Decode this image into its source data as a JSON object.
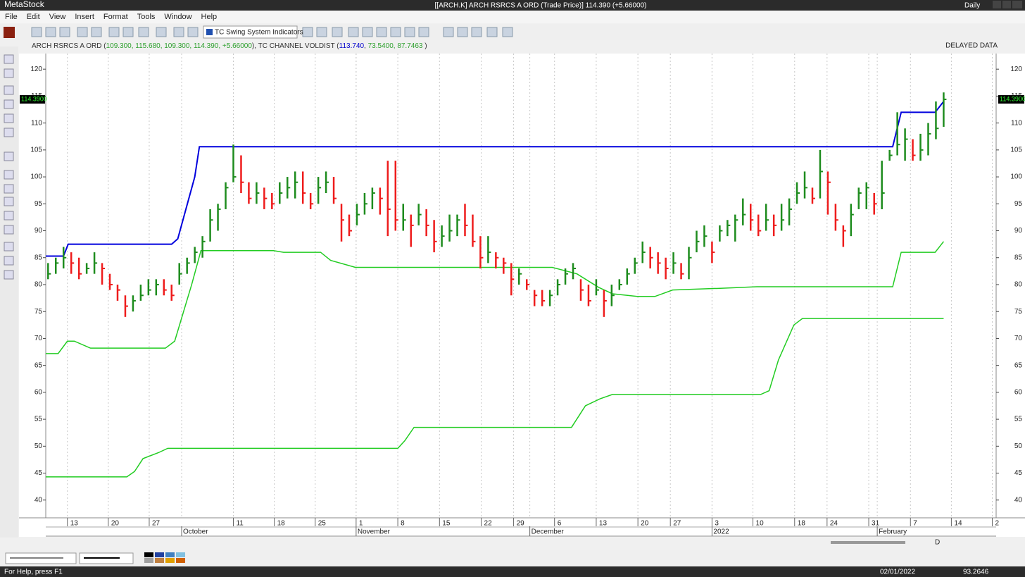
{
  "window": {
    "app": "MetaStock",
    "title": "[[ARCH.K] ARCH RSRCS A ORD (Trade Price)]  114.390 (+5.66000)",
    "period": "Daily"
  },
  "menu": [
    "File",
    "Edit",
    "View",
    "Insert",
    "Format",
    "Tools",
    "Window",
    "Help"
  ],
  "toolbar": {
    "template": "TC Swing System Indicators"
  },
  "info_line": [
    {
      "text": "ARCH RSRCS A ORD (",
      "color": "#333333"
    },
    {
      "text": "109.300, 115.680, 109.300, 114.390, +5.66000",
      "color": "#2ea02e"
    },
    {
      "text": "), TC CHANNEL VOLDIST (",
      "color": "#333333"
    },
    {
      "text": "113.740",
      "color": "#0000cc"
    },
    {
      "text": ", ",
      "color": "#333333"
    },
    {
      "text": "73.5400, 87.7463",
      "color": "#2ea02e"
    },
    {
      "text": " )",
      "color": "#333333"
    }
  ],
  "data_status": "DELAYED DATA",
  "chart_data": {
    "type": "ohlc",
    "ylim": [
      36.7,
      122.9
    ],
    "yticks": [
      40,
      45,
      50,
      55,
      60,
      65,
      70,
      75,
      80,
      85,
      90,
      95,
      100,
      105,
      110,
      115,
      120
    ],
    "xlim": [
      -0.3,
      122.8
    ],
    "xticks": [
      {
        "value": 2.5,
        "label": "13"
      },
      {
        "value": 7.8,
        "label": "20"
      },
      {
        "value": 13.1,
        "label": "27"
      },
      {
        "value": 24,
        "label": "11"
      },
      {
        "value": 29.3,
        "label": "18"
      },
      {
        "value": 34.6,
        "label": "25"
      },
      {
        "value": 39.9,
        "label": "1"
      },
      {
        "value": 45.3,
        "label": "8"
      },
      {
        "value": 50.7,
        "label": "15"
      },
      {
        "value": 56.1,
        "label": "22"
      },
      {
        "value": 60.3,
        "label": "29"
      },
      {
        "value": 65.6,
        "label": "6"
      },
      {
        "value": 71,
        "label": "13"
      },
      {
        "value": 76.4,
        "label": "20"
      },
      {
        "value": 80.6,
        "label": "27"
      },
      {
        "value": 86,
        "label": "3"
      },
      {
        "value": 91.3,
        "label": "10"
      },
      {
        "value": 96.7,
        "label": "18"
      },
      {
        "value": 100.9,
        "label": "24"
      },
      {
        "value": 106.3,
        "label": "31"
      },
      {
        "value": 111.7,
        "label": "7"
      },
      {
        "value": 117,
        "label": "14"
      },
      {
        "value": 122.3,
        "label": "2"
      }
    ],
    "month_ticks": [
      {
        "value": 17.3,
        "label": "October"
      },
      {
        "value": 39.9,
        "label": "November"
      },
      {
        "value": 62.4,
        "label": "December"
      },
      {
        "value": 86,
        "label": "2022"
      },
      {
        "value": 107.4,
        "label": "February"
      }
    ],
    "grid": true,
    "up_color": "#1e8c1e",
    "down_color": "#ee1c1c",
    "last_price": {
      "value": 114.39,
      "label": "114.3900"
    },
    "bars": {
      "high": [
        84,
        85,
        87,
        86,
        85,
        84,
        86,
        84,
        82,
        80,
        78,
        78,
        80,
        81,
        81,
        81,
        80,
        84,
        85,
        87,
        89,
        94,
        95,
        99,
        106,
        104,
        99,
        99,
        98,
        97,
        99,
        100,
        101,
        101,
        97,
        100,
        101,
        100,
        95,
        93,
        95,
        97,
        98,
        98,
        103,
        103,
        95,
        93,
        95,
        94,
        92,
        91,
        93,
        93,
        95,
        93,
        89,
        89,
        86,
        85,
        84,
        83,
        81,
        79,
        79,
        79,
        81,
        83,
        84,
        81,
        80,
        81,
        79,
        80,
        81,
        83,
        85,
        88,
        87,
        86,
        85,
        86,
        84,
        87,
        90,
        91,
        88,
        91,
        92,
        93,
        96,
        95,
        93,
        95,
        93,
        95,
        96,
        99,
        101,
        98,
        105,
        101,
        95,
        91,
        95,
        98,
        99,
        97,
        103,
        105,
        112,
        109,
        107,
        108,
        110,
        114,
        115.68
      ],
      "low": [
        81,
        82,
        83,
        82,
        81,
        82,
        82,
        80,
        79,
        77,
        74,
        75,
        77,
        78,
        78,
        78,
        77,
        80,
        82,
        84,
        85,
        88,
        90,
        94,
        99,
        97,
        95,
        95,
        94,
        94,
        95,
        96,
        96,
        95,
        94,
        95,
        97,
        95,
        88,
        89,
        91,
        93,
        94,
        93,
        89,
        90,
        90,
        87,
        91,
        89,
        86,
        87,
        88,
        89,
        89,
        87,
        83,
        84,
        83,
        82,
        78,
        80,
        79,
        76,
        76,
        76,
        78,
        80,
        81,
        77,
        76,
        78,
        74,
        76,
        79,
        80,
        82,
        84,
        83,
        82,
        81,
        82,
        81,
        81,
        86,
        87,
        84,
        88,
        89,
        88,
        91,
        90,
        89,
        90,
        89,
        90,
        91,
        95,
        96,
        95,
        96,
        93,
        90,
        87,
        89,
        94,
        94,
        93,
        94,
        103,
        104,
        103,
        103,
        103,
        104,
        107,
        109.3
      ],
      "close": [
        82,
        84,
        85,
        84,
        82,
        83,
        84,
        83,
        80,
        79,
        76,
        77,
        78,
        79,
        80,
        79,
        78,
        82,
        84,
        86,
        88,
        92,
        94,
        98,
        100,
        99,
        96,
        97,
        96,
        95,
        97,
        98,
        99,
        97,
        95,
        98,
        99,
        96,
        92,
        90,
        93,
        95,
        97,
        96,
        94,
        92,
        92,
        91,
        93,
        91,
        88,
        89,
        90,
        92,
        91,
        88,
        85,
        86,
        85,
        84,
        81,
        82,
        80,
        78,
        77,
        78,
        80,
        82,
        83,
        79,
        77,
        79,
        77,
        78,
        80,
        82,
        84,
        86,
        85,
        84,
        83,
        84,
        82,
        85,
        88,
        89,
        86,
        90,
        91,
        92,
        93,
        92,
        90,
        92,
        91,
        92,
        94,
        97,
        98,
        96,
        101,
        99,
        92,
        90,
        93,
        97,
        98,
        95,
        97,
        104,
        106,
        107,
        104,
        105,
        108,
        109,
        114.39
      ]
    },
    "lines": [
      {
        "color": "#0000dd",
        "x": [
          -0.3,
          2,
          2.6,
          16,
          16.8,
          19,
          19.6,
          109.4,
          110.5,
          114.9,
          116
        ],
        "values": [
          85.3,
          85.3,
          87.5,
          87.5,
          88.5,
          100,
          105.6,
          105.6,
          112,
          112,
          114
        ]
      },
      {
        "color": "#22cc22",
        "x": [
          -0.3,
          1.3,
          2.5,
          3.4,
          5.5,
          15.2,
          16.4,
          18.6,
          19.8,
          29.2,
          30.5,
          35.3,
          36.6,
          39.8,
          65.3,
          68.5,
          71.3,
          73.1,
          76.3,
          78.6,
          80.9,
          86.8,
          91.8,
          109.4,
          110.5,
          114.9,
          116
        ],
        "values": [
          67.2,
          67.2,
          69.5,
          69.5,
          68.2,
          68.2,
          69.5,
          80,
          86.3,
          86.3,
          86,
          86,
          84.5,
          83.2,
          83.2,
          82,
          79.5,
          78.3,
          77.8,
          77.8,
          79,
          79.3,
          79.6,
          79.6,
          86,
          86,
          88
        ]
      },
      {
        "color": "#22cc22",
        "x": [
          -0.3,
          10.2,
          11.2,
          12.3,
          14.3,
          15.5,
          45.3,
          46.2,
          47.4,
          67.8,
          69.6,
          71.5,
          73.1,
          92.3,
          93.4,
          94.6,
          96.6,
          97.7,
          116
        ],
        "values": [
          44.3,
          44.3,
          45.3,
          47.7,
          48.8,
          49.6,
          49.6,
          51,
          53.5,
          53.5,
          57.5,
          58.8,
          59.6,
          59.6,
          60.3,
          66,
          72.5,
          73.7,
          73.7
        ]
      }
    ]
  },
  "status": {
    "help": "For Help, press F1",
    "date": "02/01/2022",
    "value": "93.2646",
    "mode": "D"
  }
}
